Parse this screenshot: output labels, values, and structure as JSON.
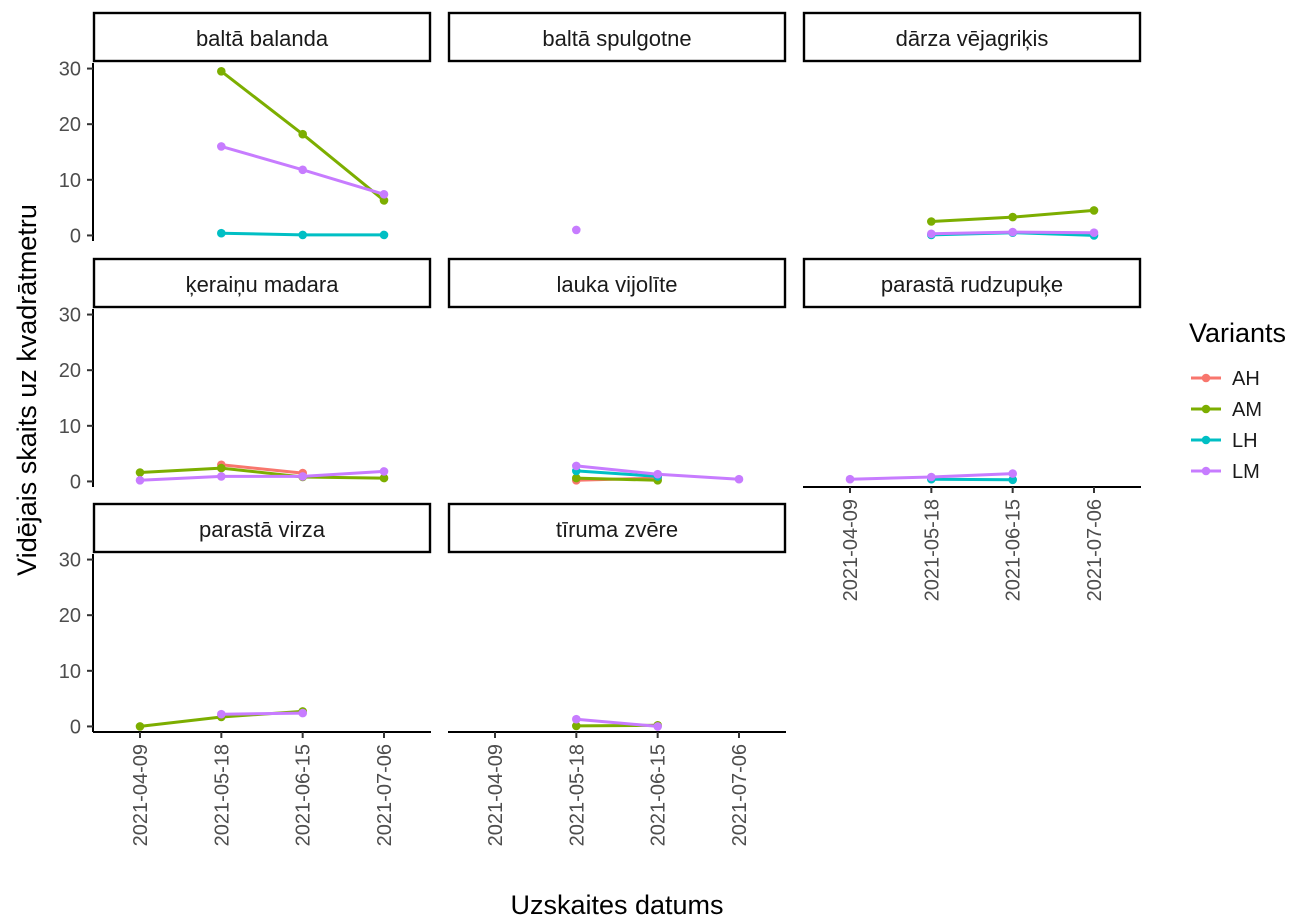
{
  "chart_data": {
    "type": "line",
    "facet_layout": "3 columns x 3 rows (facet_wrap)",
    "xlabel": "Uzskaites datums",
    "ylabel": "Vidējais skaits uz kvadrātmetru",
    "x": [
      "2021-04-09",
      "2021-05-18",
      "2021-06-15",
      "2021-07-06"
    ],
    "y_ticks": [
      0,
      10,
      20,
      30
    ],
    "ylim": [
      -1,
      31
    ],
    "grid": false,
    "legend": {
      "title": "Variants",
      "placement": "right",
      "entries": [
        {
          "name": "AH",
          "color": "#F8766D"
        },
        {
          "name": "AM",
          "color": "#7CAE00"
        },
        {
          "name": "LH",
          "color": "#00BFC4"
        },
        {
          "name": "LM",
          "color": "#C77CFF"
        }
      ]
    },
    "panels": [
      {
        "title": "baltā balanda",
        "series": [
          {
            "name": "AM",
            "points": [
              [
                "2021-05-18",
                29.5
              ],
              [
                "2021-06-15",
                18.2
              ],
              [
                "2021-07-06",
                6.3
              ]
            ]
          },
          {
            "name": "LM",
            "points": [
              [
                "2021-05-18",
                16.0
              ],
              [
                "2021-06-15",
                11.8
              ],
              [
                "2021-07-06",
                7.4
              ]
            ]
          },
          {
            "name": "LH",
            "points": [
              [
                "2021-05-18",
                0.4
              ],
              [
                "2021-06-15",
                0.1
              ],
              [
                "2021-07-06",
                0.1
              ]
            ]
          }
        ]
      },
      {
        "title": "baltā spulgotne",
        "series": [
          {
            "name": "LM",
            "points": [
              [
                "2021-05-18",
                1.0
              ]
            ]
          }
        ]
      },
      {
        "title": "dārza vējagriķis",
        "series": [
          {
            "name": "AM",
            "points": [
              [
                "2021-05-18",
                2.5
              ],
              [
                "2021-06-15",
                3.3
              ],
              [
                "2021-07-06",
                4.5
              ]
            ]
          },
          {
            "name": "LH",
            "points": [
              [
                "2021-05-18",
                0.1
              ],
              [
                "2021-06-15",
                0.5
              ],
              [
                "2021-07-06",
                0.0
              ]
            ]
          },
          {
            "name": "LM",
            "points": [
              [
                "2021-05-18",
                0.3
              ],
              [
                "2021-06-15",
                0.6
              ],
              [
                "2021-07-06",
                0.5
              ]
            ]
          }
        ]
      },
      {
        "title": "ķeraiņu madara",
        "series": [
          {
            "name": "AH",
            "points": [
              [
                "2021-05-18",
                3.0
              ],
              [
                "2021-06-15",
                1.5
              ]
            ]
          },
          {
            "name": "AM",
            "points": [
              [
                "2021-04-09",
                1.6
              ],
              [
                "2021-05-18",
                2.4
              ],
              [
                "2021-06-15",
                0.8
              ],
              [
                "2021-07-06",
                0.6
              ]
            ]
          },
          {
            "name": "LM",
            "points": [
              [
                "2021-04-09",
                0.2
              ],
              [
                "2021-05-18",
                0.9
              ],
              [
                "2021-06-15",
                0.9
              ],
              [
                "2021-07-06",
                1.8
              ]
            ]
          }
        ]
      },
      {
        "title": "lauka vijolīte",
        "series": [
          {
            "name": "AH",
            "points": [
              [
                "2021-05-18",
                0.2
              ],
              [
                "2021-06-15",
                0.6
              ]
            ]
          },
          {
            "name": "AM",
            "points": [
              [
                "2021-05-18",
                0.6
              ],
              [
                "2021-06-15",
                0.2
              ]
            ]
          },
          {
            "name": "LH",
            "points": [
              [
                "2021-05-18",
                1.9
              ],
              [
                "2021-06-15",
                0.9
              ]
            ]
          },
          {
            "name": "LM",
            "points": [
              [
                "2021-05-18",
                2.8
              ],
              [
                "2021-06-15",
                1.3
              ],
              [
                "2021-07-06",
                0.4
              ]
            ]
          }
        ]
      },
      {
        "title": "parastā rudzupuķe",
        "series": [
          {
            "name": "LH",
            "points": [
              [
                "2021-05-18",
                0.4
              ],
              [
                "2021-06-15",
                0.3
              ]
            ]
          },
          {
            "name": "LM",
            "points": [
              [
                "2021-04-09",
                0.4
              ],
              [
                "2021-05-18",
                0.8
              ],
              [
                "2021-06-15",
                1.4
              ]
            ]
          }
        ]
      },
      {
        "title": "parastā virza",
        "series": [
          {
            "name": "AM",
            "points": [
              [
                "2021-04-09",
                0.0
              ],
              [
                "2021-05-18",
                1.7
              ],
              [
                "2021-06-15",
                2.7
              ]
            ]
          },
          {
            "name": "LM",
            "points": [
              [
                "2021-05-18",
                2.2
              ],
              [
                "2021-06-15",
                2.4
              ]
            ]
          }
        ]
      },
      {
        "title": "tīruma zvēre",
        "series": [
          {
            "name": "AM",
            "points": [
              [
                "2021-05-18",
                0.1
              ],
              [
                "2021-06-15",
                0.2
              ]
            ]
          },
          {
            "name": "LM",
            "points": [
              [
                "2021-05-18",
                1.3
              ],
              [
                "2021-06-15",
                0.0
              ]
            ]
          }
        ]
      }
    ]
  }
}
